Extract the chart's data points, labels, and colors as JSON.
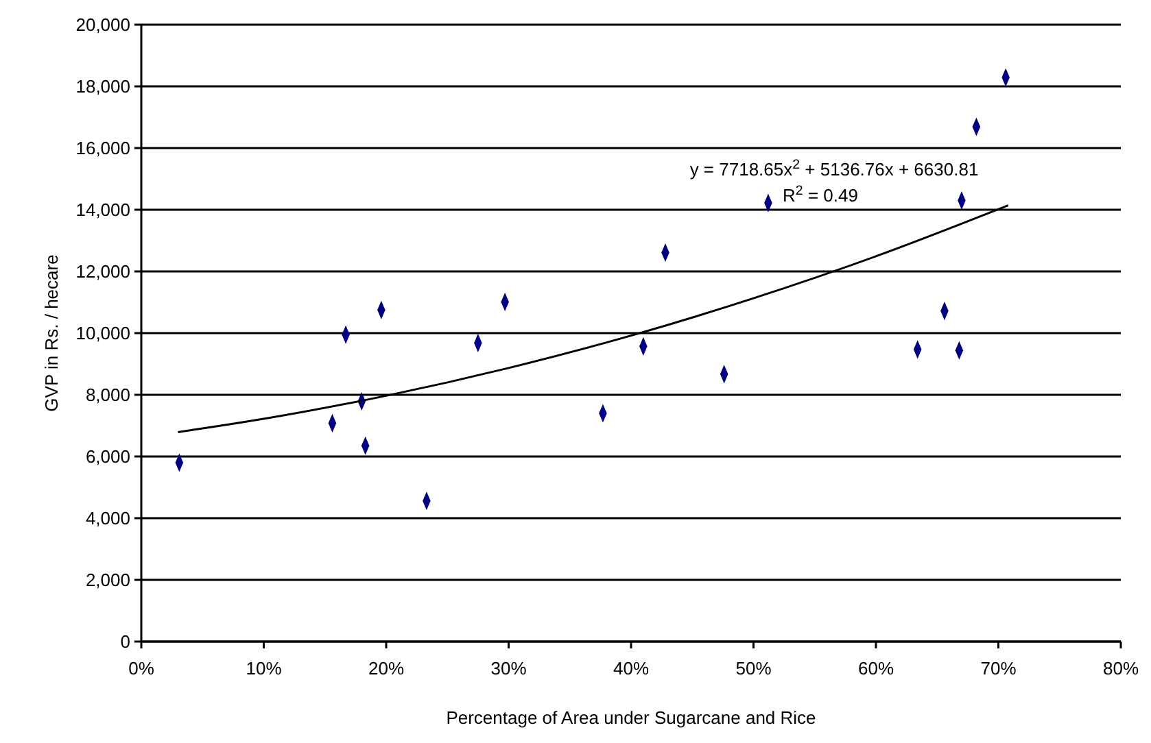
{
  "chart_data": {
    "type": "scatter",
    "xlabel": "Percentage of Area under Sugarcane and Rice",
    "ylabel": "GVP in Rs. / hecare",
    "xlim": [
      0,
      80
    ],
    "xticks": [
      {
        "value": 0,
        "label": "0%"
      },
      {
        "value": 10,
        "label": "10%"
      },
      {
        "value": 20,
        "label": "20%"
      },
      {
        "value": 30,
        "label": "30%"
      },
      {
        "value": 40,
        "label": "40%"
      },
      {
        "value": 50,
        "label": "50%"
      },
      {
        "value": 60,
        "label": "60%"
      },
      {
        "value": 70,
        "label": "70%"
      },
      {
        "value": 80,
        "label": "80%"
      }
    ],
    "ylim": [
      0,
      20000
    ],
    "yticks": [
      {
        "value": 0,
        "label": "0"
      },
      {
        "value": 2000,
        "label": "2,000"
      },
      {
        "value": 4000,
        "label": "4,000"
      },
      {
        "value": 6000,
        "label": "6,000"
      },
      {
        "value": 8000,
        "label": "8,000"
      },
      {
        "value": 10000,
        "label": "10,000"
      },
      {
        "value": 12000,
        "label": "12,000"
      },
      {
        "value": 14000,
        "label": "14,000"
      },
      {
        "value": 16000,
        "label": "16,000"
      },
      {
        "value": 18000,
        "label": "18,000"
      },
      {
        "value": 20000,
        "label": "20,000"
      }
    ],
    "grid": "y",
    "marker": "diamond",
    "series": [
      {
        "color": "#000080",
        "x": [
          3.1,
          15.6,
          16.7,
          18.0,
          18.3,
          19.6,
          23.3,
          27.5,
          29.7,
          37.7,
          41.0,
          42.8,
          47.6,
          51.2,
          63.4,
          65.6,
          66.8,
          67.0,
          68.2,
          70.6
        ],
        "values": [
          5800,
          7080,
          9950,
          7790,
          6350,
          10750,
          4560,
          9680,
          11010,
          7400,
          9570,
          12610,
          8670,
          14220,
          9470,
          10720,
          9440,
          14300,
          16690,
          18290
        ]
      },
      {
        "type": "line",
        "color": "#000000",
        "marker": "none",
        "x": [
          3,
          10,
          20,
          30,
          40,
          50,
          60,
          70.8
        ],
        "values": [
          6790,
          7220,
          7970,
          8870,
          9920,
          11130,
          12490,
          14140
        ]
      }
    ],
    "annotations": [
      "y = 7718.65x$^{2}$ + 5136.76x + 6630.81",
      "R$^{2}$ = 0.49"
    ]
  }
}
